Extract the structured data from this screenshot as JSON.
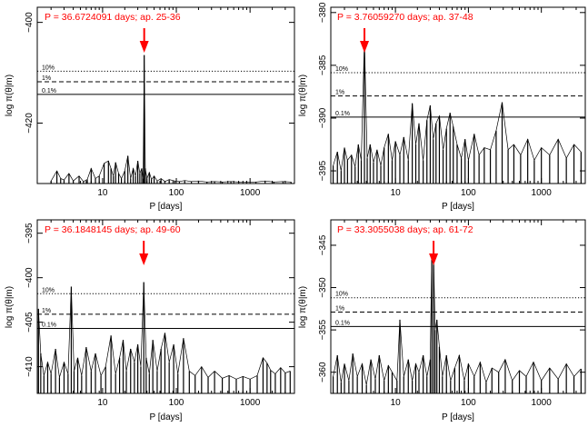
{
  "colors": {
    "annotation": "#ff0000",
    "line": "#000000",
    "background": "#ffffff"
  },
  "chart_data": [
    {
      "type": "line",
      "title": "P = 36.6724091 days; ap. 25-36",
      "xlabel": "P [days]",
      "ylabel": "log π(θ|m)",
      "xscale": "log",
      "xlim": [
        1.3,
        4000
      ],
      "ylim": [
        -432,
        -397
      ],
      "xticks": [
        10,
        100,
        1000
      ],
      "yticks": [
        -400,
        -420
      ],
      "levels": [
        {
          "label": "10%",
          "y": -409.7,
          "style": "dotted"
        },
        {
          "label": "1%",
          "y": -411.8,
          "style": "dashed"
        },
        {
          "label": "0.1%",
          "y": -414.3,
          "style": "solid"
        }
      ],
      "highlight_period": 36.67,
      "series": [
        {
          "x": [
            2.0,
            2.4,
            2.7,
            3.0,
            3.5,
            4.0,
            4.8,
            5.5,
            6.2,
            7.0,
            8.0,
            9.0,
            10.5,
            12.0,
            13.0,
            14.0,
            15.0,
            16.5,
            18.0,
            20.0,
            22.0,
            24.0,
            26.0,
            28.0,
            30.0,
            32.0,
            34.0,
            35.5,
            36.67,
            38.0,
            40.0,
            43.0,
            46.0,
            50.0,
            55.0,
            62.0,
            70.0,
            80.0,
            95.0,
            110.0,
            130.0,
            160.0,
            200.0,
            260.0,
            330.0,
            420.0,
            550.0,
            700.0,
            900.0,
            1200.0,
            1600.0,
            2100.0,
            2800.0,
            3600.0
          ],
          "y": [
            -431.5,
            -429.5,
            -431.0,
            -431.3,
            -430.0,
            -431.5,
            -430.5,
            -431.6,
            -431.2,
            -429.0,
            -431.0,
            -430.5,
            -428.0,
            -427.5,
            -429.0,
            -430.5,
            -427.8,
            -430.0,
            -431.0,
            -429.5,
            -426.5,
            -431.0,
            -429.0,
            -430.5,
            -427.5,
            -430.0,
            -429.0,
            -431.0,
            -406.5,
            -429.0,
            -431.0,
            -429.8,
            -431.2,
            -430.5,
            -431.5,
            -431.0,
            -431.6,
            -431.2,
            -431.5,
            -431.6,
            -431.4,
            -431.6,
            -431.5,
            -431.7,
            -431.6,
            -431.7,
            -431.6,
            -431.7,
            -431.7,
            -431.7,
            -431.5,
            -431.7,
            -431.6,
            -431.7
          ]
        }
      ]
    },
    {
      "type": "line",
      "title": "P = 3.76059270 days; ap. 37-48",
      "xlabel": "P [days]",
      "ylabel": "log π(θ|m)",
      "xscale": "log",
      "xlim": [
        1.3,
        4000
      ],
      "ylim": [
        -396.2,
        -379.5
      ],
      "xticks": [
        10,
        100,
        1000
      ],
      "yticks": [
        -380,
        -385,
        -390,
        -395
      ],
      "levels": [
        {
          "label": "10%",
          "y": -385.7,
          "style": "dotted"
        },
        {
          "label": "1%",
          "y": -387.9,
          "style": "dashed"
        },
        {
          "label": "0.1%",
          "y": -389.9,
          "style": "solid"
        }
      ],
      "highlight_period": 3.76,
      "series": [
        {
          "x": [
            1.4,
            1.6,
            1.8,
            2.0,
            2.2,
            2.5,
            2.8,
            3.1,
            3.4,
            3.76,
            4.1,
            4.5,
            5.0,
            5.6,
            6.3,
            7.0,
            8.0,
            9.0,
            10.0,
            11.5,
            13.0,
            15.0,
            17.0,
            19.0,
            21.0,
            24.0,
            27.0,
            30.0,
            33.0,
            36.0,
            40.0,
            45.0,
            50.0,
            56.0,
            62.0,
            70.0,
            80.0,
            90.0,
            100.0,
            120.0,
            140.0,
            165.0,
            200.0,
            240.0,
            290.0,
            350.0,
            420.0,
            520.0,
            650.0,
            800.0,
            1000.0,
            1300.0,
            1700.0,
            2200.0,
            2800.0,
            3500.0
          ],
          "y": [
            -394.5,
            -393.2,
            -395.0,
            -392.8,
            -394.0,
            -393.5,
            -394.6,
            -392.5,
            -394.0,
            -382.6,
            -393.8,
            -392.5,
            -394.2,
            -393.0,
            -394.5,
            -392.8,
            -391.5,
            -394.0,
            -392.2,
            -393.5,
            -391.8,
            -394.0,
            -388.6,
            -392.5,
            -390.5,
            -394.0,
            -390.2,
            -388.8,
            -392.0,
            -390.5,
            -389.8,
            -393.0,
            -391.0,
            -389.5,
            -390.8,
            -392.5,
            -393.8,
            -392.0,
            -394.0,
            -391.5,
            -393.5,
            -392.8,
            -393.0,
            -391.2,
            -388.5,
            -393.0,
            -392.5,
            -393.5,
            -392.0,
            -394.0,
            -392.8,
            -393.5,
            -392.0,
            -393.8,
            -392.5,
            -393.2
          ]
        }
      ]
    },
    {
      "type": "line",
      "title": "P = 36.1848145 days; ap. 49-60",
      "xlabel": "P [days]",
      "ylabel": "log π(θ|m)",
      "xscale": "log",
      "xlim": [
        1.3,
        4000
      ],
      "ylim": [
        -413,
        -393.5
      ],
      "xticks": [
        10,
        100,
        1000
      ],
      "yticks": [
        -395,
        -400,
        -405,
        -410
      ],
      "levels": [
        {
          "label": "10%",
          "y": -401.8,
          "style": "dotted"
        },
        {
          "label": "1%",
          "y": -404.1,
          "style": "dashed"
        },
        {
          "label": "0.1%",
          "y": -405.7,
          "style": "solid"
        }
      ],
      "highlight_period": 36.18,
      "series": [
        {
          "x": [
            1.35,
            1.45,
            1.6,
            1.8,
            2.0,
            2.3,
            2.6,
            3.0,
            3.4,
            3.76,
            4.1,
            4.6,
            5.2,
            6.0,
            7.0,
            8.0,
            9.5,
            11.0,
            13.0,
            15.0,
            17.0,
            19.0,
            21.0,
            24.0,
            27.0,
            30.0,
            33.0,
            36.18,
            39.0,
            43.0,
            48.0,
            55.0,
            62.0,
            70.0,
            80.0,
            92.0,
            105.0,
            125.0,
            150.0,
            180.0,
            220.0,
            270.0,
            330.0,
            420.0,
            520.0,
            650.0,
            800.0,
            1000.0,
            1250.0,
            1500.0,
            1700.0,
            1900.0,
            2200.0,
            2600.0,
            3000.0,
            3500.0
          ],
          "y": [
            -403.5,
            -408.5,
            -411.0,
            -409.5,
            -410.8,
            -408.0,
            -411.2,
            -409.5,
            -410.8,
            -401.0,
            -410.5,
            -409.0,
            -411.0,
            -407.8,
            -410.5,
            -408.5,
            -411.0,
            -410.0,
            -406.5,
            -410.8,
            -409.0,
            -407.0,
            -410.5,
            -408.0,
            -409.5,
            -407.5,
            -410.0,
            -400.5,
            -409.0,
            -410.8,
            -407.0,
            -410.5,
            -408.0,
            -406.2,
            -409.5,
            -407.5,
            -410.8,
            -406.8,
            -410.5,
            -411.0,
            -410.0,
            -411.2,
            -410.5,
            -411.3,
            -411.0,
            -411.4,
            -411.1,
            -411.4,
            -411.0,
            -409.0,
            -409.6,
            -410.4,
            -410.8,
            -410.1,
            -410.7,
            -410.5
          ]
        }
      ]
    },
    {
      "type": "line",
      "title": "P = 33.3055038 days; ap. 61-72",
      "xlabel": "P [days]",
      "ylabel": "log π(θ|m)",
      "xscale": "log",
      "xlim": [
        1.3,
        4000
      ],
      "ylim": [
        -362.5,
        -342
      ],
      "xticks": [
        10,
        100,
        1000
      ],
      "yticks": [
        -345,
        -350,
        -355,
        -360
      ],
      "levels": [
        {
          "label": "10%",
          "y": -351.2,
          "style": "dotted"
        },
        {
          "label": "1%",
          "y": -352.9,
          "style": "dashed"
        },
        {
          "label": "0.1%",
          "y": -354.6,
          "style": "solid"
        }
      ],
      "highlight_period": 33.31,
      "series": [
        {
          "x": [
            1.4,
            1.6,
            1.8,
            2.0,
            2.3,
            2.6,
            3.0,
            3.5,
            4.0,
            4.6,
            5.3,
            6.0,
            7.0,
            8.0,
            9.0,
            10.5,
            11.5,
            13.0,
            15.0,
            17.0,
            19.0,
            21.0,
            24.0,
            27.0,
            30.0,
            31.5,
            33.31,
            35.0,
            37.0,
            40.0,
            44.0,
            50.0,
            57.0,
            65.0,
            75.0,
            88.0,
            100.0,
            120.0,
            145.0,
            175.0,
            210.0,
            260.0,
            320.0,
            400.0,
            500.0,
            620.0,
            780.0,
            1000.0,
            1300.0,
            1700.0,
            2200.0,
            2800.0,
            3500.0
          ],
          "y": [
            -360.5,
            -358.0,
            -361.2,
            -359.0,
            -361.0,
            -357.8,
            -360.5,
            -359.0,
            -361.5,
            -358.5,
            -360.8,
            -358.0,
            -361.0,
            -359.2,
            -360.0,
            -361.0,
            -353.8,
            -360.5,
            -358.5,
            -361.0,
            -359.0,
            -360.0,
            -358.0,
            -360.5,
            -358.5,
            -346.2,
            -346.5,
            -355.0,
            -353.8,
            -357.0,
            -360.5,
            -358.0,
            -361.0,
            -359.5,
            -358.0,
            -361.0,
            -359.0,
            -360.5,
            -358.8,
            -361.2,
            -359.5,
            -360.0,
            -358.5,
            -361.0,
            -359.8,
            -360.5,
            -358.8,
            -361.0,
            -359.5,
            -360.8,
            -359.0,
            -360.5,
            -359.6
          ]
        }
      ]
    }
  ]
}
